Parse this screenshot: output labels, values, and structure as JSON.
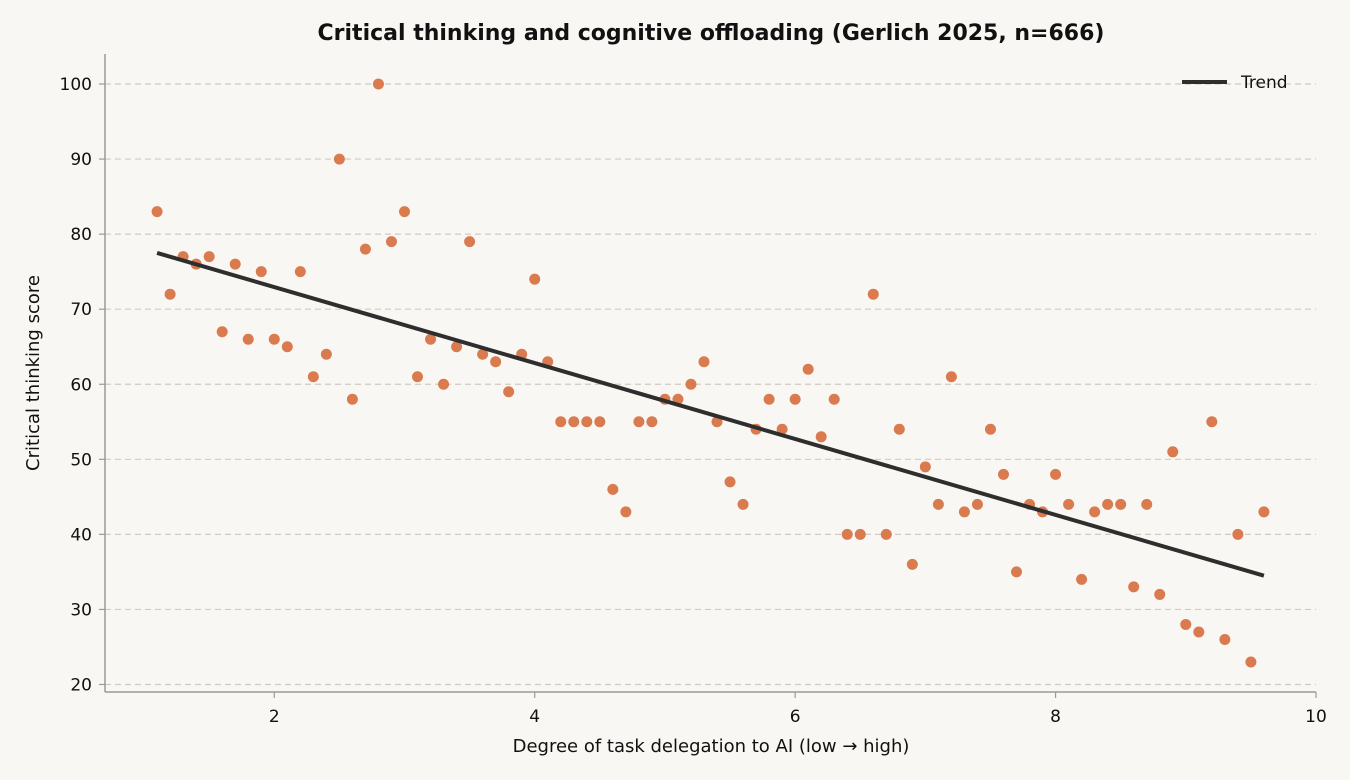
{
  "chart_data": {
    "type": "scatter",
    "title": "Critical thinking and cognitive offloading (Gerlich 2025, n=666)",
    "xlabel": "Degree of task delegation to AI (low → high)",
    "ylabel": "Critical thinking score",
    "xlim": [
      0.7,
      10
    ],
    "ylim": [
      19,
      104
    ],
    "xticks": [
      2,
      4,
      6,
      8,
      10
    ],
    "xtick_labels": [
      "2",
      "4",
      "6",
      "8",
      "10"
    ],
    "yticks": [
      20,
      30,
      40,
      50,
      60,
      70,
      80,
      90,
      100
    ],
    "ytick_labels": [
      "20",
      "30",
      "40",
      "50",
      "60",
      "70",
      "80",
      "90",
      "100"
    ],
    "grid": "horizontal dashed",
    "legend_position": "top-right",
    "series": [
      {
        "kind": "points",
        "color": "#d97b4f",
        "x": [
          1.1,
          1.2,
          1.3,
          1.4,
          1.5,
          1.6,
          1.7,
          1.8,
          1.9,
          2.0,
          2.1,
          2.2,
          2.3,
          2.4,
          2.5,
          2.6,
          2.7,
          2.8,
          2.9,
          3.0,
          3.1,
          3.2,
          3.3,
          3.4,
          3.5,
          3.6,
          3.7,
          3.8,
          3.9,
          4.0,
          4.1,
          4.2,
          4.3,
          4.4,
          4.5,
          4.6,
          4.7,
          4.8,
          4.9,
          5.0,
          5.1,
          5.2,
          5.3,
          5.4,
          5.5,
          5.6,
          5.7,
          5.8,
          5.9,
          6.0,
          6.1,
          6.2,
          6.3,
          6.4,
          6.5,
          6.6,
          6.7,
          6.8,
          6.9,
          7.0,
          7.1,
          7.2,
          7.3,
          7.4,
          7.5,
          7.6,
          7.7,
          7.8,
          7.9,
          8.0,
          8.1,
          8.2,
          8.3,
          8.4,
          8.5,
          8.6,
          8.7,
          8.8,
          8.9,
          9.0,
          9.1,
          9.2,
          9.3,
          9.4,
          9.5,
          9.6
        ],
        "y": [
          83,
          72,
          77,
          76,
          77,
          67,
          76,
          66,
          75,
          66,
          65,
          75,
          61,
          64,
          90,
          58,
          78,
          100,
          79,
          83,
          61,
          66,
          60,
          65,
          79,
          64,
          63,
          59,
          64,
          74,
          63,
          55,
          55,
          55,
          55,
          46,
          43,
          55,
          55,
          58,
          58,
          60,
          63,
          55,
          47,
          44,
          54,
          58,
          54,
          58,
          62,
          53,
          58,
          40,
          40,
          72,
          40,
          54,
          36,
          49,
          44,
          61,
          43,
          44,
          54,
          48,
          35,
          44,
          43,
          48,
          44,
          34,
          43,
          44,
          44,
          33,
          44,
          32,
          51,
          28,
          27,
          55,
          26,
          40,
          23,
          43
        ]
      },
      {
        "kind": "line",
        "name": "Trend",
        "color": "#2e2e2e",
        "x": [
          1.1,
          9.6
        ],
        "y": [
          77.5,
          34.5
        ]
      }
    ]
  }
}
